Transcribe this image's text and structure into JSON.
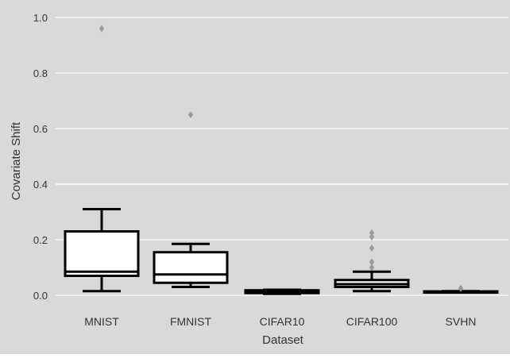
{
  "chart_data": {
    "type": "box",
    "xlabel": "Dataset",
    "ylabel": "Covariate Shift",
    "categories": [
      "MNIST",
      "FMNIST",
      "CIFAR10",
      "CIFAR100",
      "SVHN"
    ],
    "ylim": [
      -0.05,
      1.05
    ],
    "yticks": [
      0.0,
      0.2,
      0.4,
      0.6,
      0.8,
      1.0
    ],
    "ytick_labels": [
      "0.0",
      "0.2",
      "0.4",
      "0.6",
      "0.8",
      "1.0"
    ],
    "grid": true,
    "boxes": [
      {
        "name": "MNIST",
        "whisker_low": 0.015,
        "q1": 0.07,
        "median": 0.085,
        "q3": 0.23,
        "whisker_high": 0.31,
        "outliers": [
          0.96
        ]
      },
      {
        "name": "FMNIST",
        "whisker_low": 0.03,
        "q1": 0.045,
        "median": 0.075,
        "q3": 0.155,
        "whisker_high": 0.185,
        "outliers": [
          0.65
        ]
      },
      {
        "name": "CIFAR10",
        "whisker_low": 0.005,
        "q1": 0.008,
        "median": 0.012,
        "q3": 0.018,
        "whisker_high": 0.02,
        "outliers": []
      },
      {
        "name": "CIFAR100",
        "whisker_low": 0.015,
        "q1": 0.03,
        "median": 0.04,
        "q3": 0.055,
        "whisker_high": 0.085,
        "outliers": [
          0.1,
          0.12,
          0.17,
          0.21,
          0.225
        ]
      },
      {
        "name": "SVHN",
        "whisker_low": 0.012,
        "q1": 0.012,
        "median": 0.013,
        "q3": 0.014,
        "whisker_high": 0.015,
        "outliers": [
          0.025
        ]
      }
    ],
    "colors": {
      "background": "#d9d9d9",
      "grid": "#ffffff",
      "box_fill": "#ffffff",
      "box_stroke": "#000000",
      "outlier": "#9a9a9a",
      "text": "#333333"
    }
  }
}
